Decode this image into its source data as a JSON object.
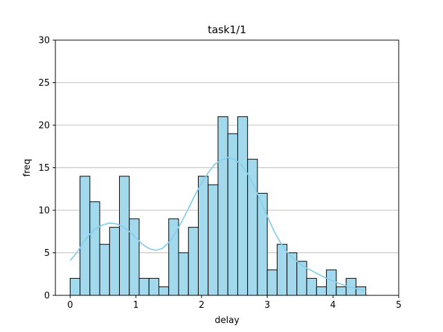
{
  "chart_data": {
    "type": "bar",
    "subtype": "histogram",
    "title": "task1/1",
    "xlabel": "delay",
    "ylabel": "freq",
    "xlim": [
      -0.225,
      5.0
    ],
    "ylim": [
      0,
      30
    ],
    "xticks": [
      0,
      1,
      2,
      3,
      4,
      5
    ],
    "yticks": [
      0,
      5,
      10,
      15,
      20,
      25,
      30
    ],
    "grid": "horizontal",
    "bin_width": 0.15,
    "bin_start": 0.0,
    "values": [
      2,
      14,
      11,
      6,
      8,
      14,
      9,
      2,
      2,
      1,
      9,
      5,
      8,
      14,
      13,
      21,
      19,
      21,
      16,
      12,
      3,
      6,
      5,
      4,
      2,
      1,
      3,
      1,
      2,
      1
    ],
    "kde": {
      "x": [
        0.0,
        0.1,
        0.2,
        0.3,
        0.4,
        0.5,
        0.6,
        0.7,
        0.8,
        0.9,
        1.0,
        1.1,
        1.2,
        1.3,
        1.4,
        1.5,
        1.6,
        1.7,
        1.8,
        1.9,
        2.0,
        2.1,
        2.2,
        2.3,
        2.4,
        2.5,
        2.6,
        2.7,
        2.8,
        2.9,
        3.0,
        3.1,
        3.2,
        3.3,
        3.4,
        3.5,
        3.6,
        3.7,
        3.8,
        3.9,
        4.0,
        4.1,
        4.2,
        4.3,
        4.4,
        4.5
      ],
      "y": [
        4.1,
        5.0,
        6.2,
        7.2,
        7.9,
        8.3,
        8.5,
        8.4,
        8.1,
        7.5,
        6.8,
        6.0,
        5.5,
        5.3,
        5.5,
        6.2,
        7.3,
        8.7,
        10.2,
        11.8,
        13.2,
        14.4,
        15.4,
        15.9,
        16.2,
        16.0,
        15.4,
        14.3,
        12.8,
        11.1,
        9.3,
        7.6,
        6.2,
        5.1,
        4.3,
        3.7,
        3.2,
        2.8,
        2.4,
        2.0,
        1.7,
        1.4,
        1.1,
        0.9,
        0.7,
        0.5
      ]
    },
    "colors": {
      "bar_fill": "#a2d9ec",
      "bar_edge": "#000000",
      "kde_line": "#87ceeb",
      "grid": "#c0c0c0"
    }
  }
}
